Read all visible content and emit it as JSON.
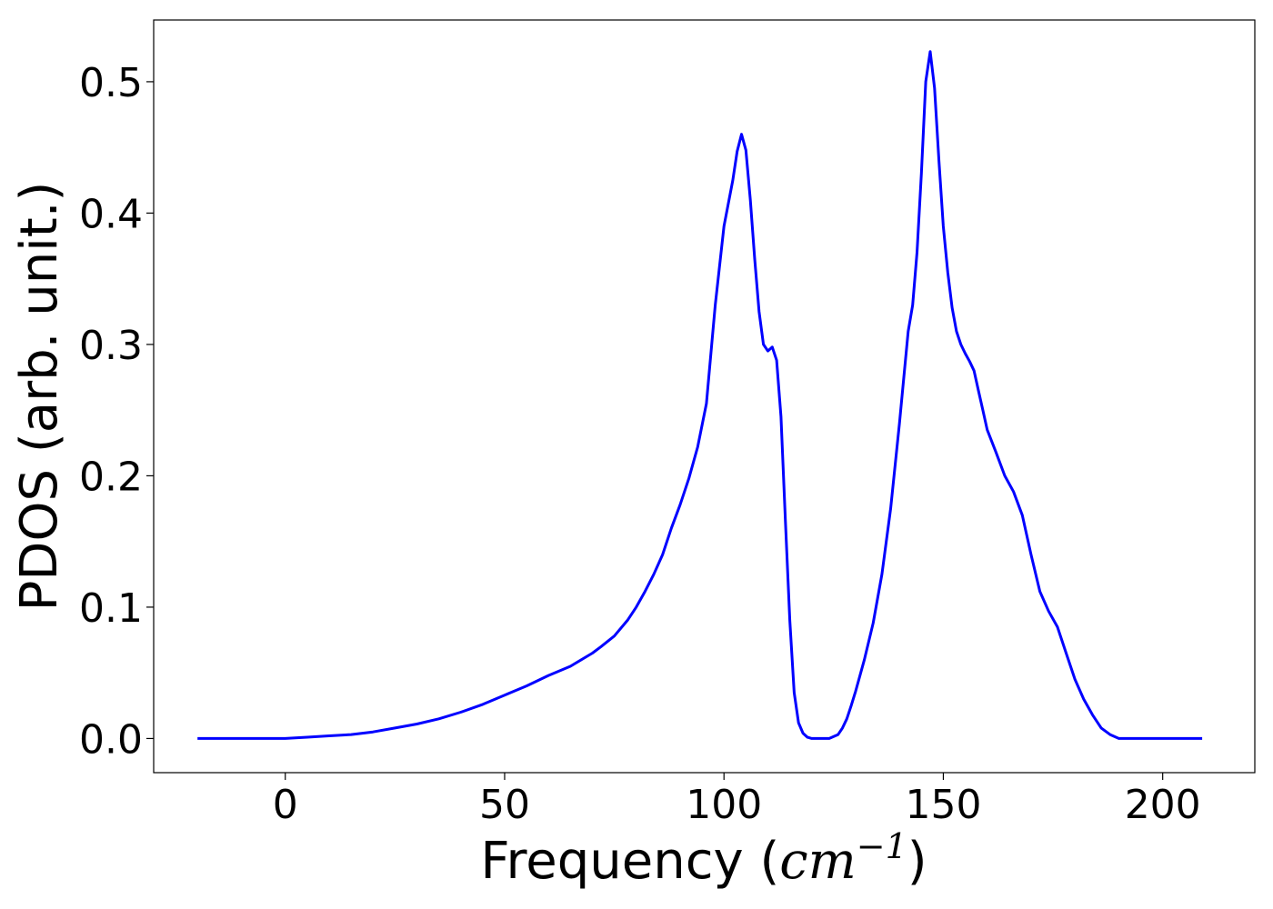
{
  "chart_data": {
    "type": "line",
    "title": "",
    "xlabel": {
      "main": "Frequency (",
      "unit": "cm",
      "exponent": "−1",
      "close": ")"
    },
    "ylabel": "PDOS (arb. unit.)",
    "xlim": [
      -30,
      221
    ],
    "ylim": [
      -0.026,
      0.547
    ],
    "xticks": [
      0,
      50,
      100,
      150,
      200
    ],
    "yticks": [
      0.0,
      0.1,
      0.2,
      0.3,
      0.4,
      0.5
    ],
    "grid": false,
    "legend": "none",
    "series": [
      {
        "color": "#0000ff",
        "x": [
          -20,
          -10,
          0,
          5,
          10,
          15,
          20,
          25,
          30,
          35,
          40,
          45,
          50,
          55,
          60,
          65,
          70,
          72,
          75,
          78,
          80,
          82,
          84,
          86,
          88,
          90,
          92,
          94,
          96,
          98,
          100,
          102,
          103,
          104,
          105,
          106,
          107,
          108,
          109,
          110,
          111,
          112,
          113,
          114,
          115,
          116,
          117,
          118,
          119,
          120,
          121,
          122,
          124,
          126,
          127,
          128,
          129,
          130,
          132,
          134,
          136,
          138,
          140,
          141,
          142,
          143,
          144,
          145,
          146,
          147,
          148,
          149,
          150,
          151,
          152,
          153,
          154,
          155,
          156,
          157,
          158,
          159,
          160,
          162,
          164,
          166,
          168,
          170,
          172,
          174,
          176,
          178,
          180,
          182,
          184,
          186,
          188,
          190,
          192,
          194,
          196,
          200,
          209
        ],
        "y": [
          0.0,
          0.0,
          0.0,
          0.001,
          0.002,
          0.003,
          0.005,
          0.008,
          0.011,
          0.015,
          0.02,
          0.026,
          0.033,
          0.04,
          0.048,
          0.055,
          0.065,
          0.07,
          0.078,
          0.09,
          0.1,
          0.112,
          0.125,
          0.14,
          0.16,
          0.178,
          0.198,
          0.222,
          0.255,
          0.33,
          0.39,
          0.425,
          0.447,
          0.46,
          0.448,
          0.41,
          0.365,
          0.325,
          0.3,
          0.295,
          0.298,
          0.288,
          0.245,
          0.165,
          0.09,
          0.035,
          0.012,
          0.004,
          0.001,
          0.0,
          0.0,
          0.0,
          0.0,
          0.003,
          0.008,
          0.015,
          0.025,
          0.036,
          0.06,
          0.088,
          0.125,
          0.175,
          0.24,
          0.275,
          0.31,
          0.33,
          0.37,
          0.43,
          0.5,
          0.523,
          0.495,
          0.44,
          0.39,
          0.355,
          0.328,
          0.31,
          0.3,
          0.293,
          0.287,
          0.28,
          0.265,
          0.25,
          0.235,
          0.218,
          0.2,
          0.188,
          0.17,
          0.14,
          0.112,
          0.097,
          0.085,
          0.065,
          0.045,
          0.03,
          0.018,
          0.008,
          0.003,
          0.0,
          0.0,
          0.0,
          0.0,
          0.0,
          0.0
        ]
      }
    ]
  }
}
